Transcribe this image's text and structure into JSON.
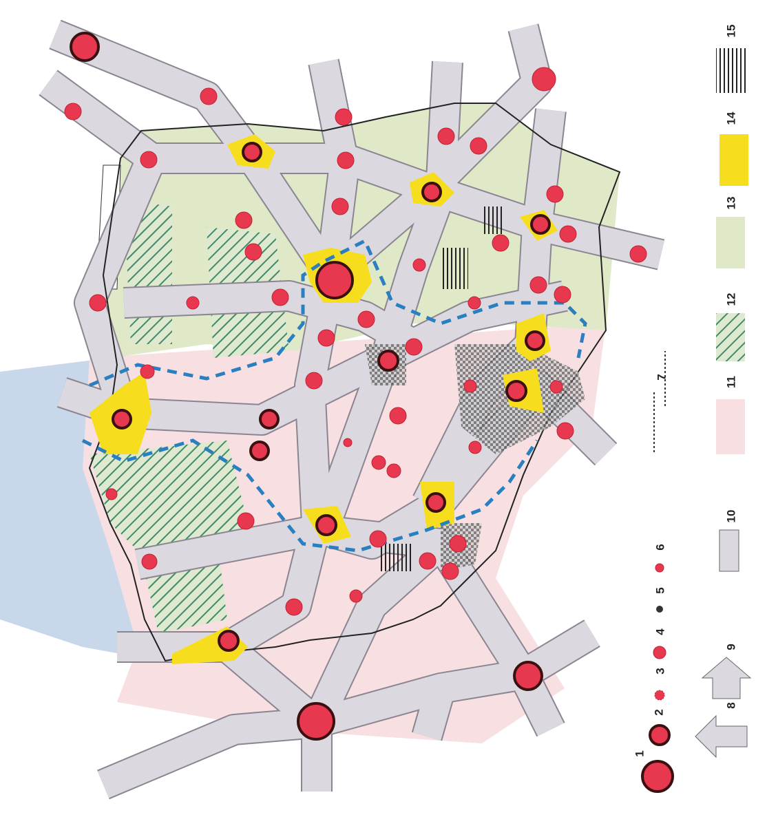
{
  "legend": {
    "items": [
      {
        "label": "1"
      },
      {
        "label": "2"
      },
      {
        "label": "3"
      },
      {
        "label": "4"
      },
      {
        "label": "5"
      },
      {
        "label": "6"
      },
      {
        "label": "7"
      },
      {
        "label": "8"
      },
      {
        "label": "9"
      },
      {
        "label": "10"
      },
      {
        "label": "11"
      },
      {
        "label": "12"
      },
      {
        "label": "13"
      },
      {
        "label": "14"
      },
      {
        "label": "15"
      }
    ]
  }
}
